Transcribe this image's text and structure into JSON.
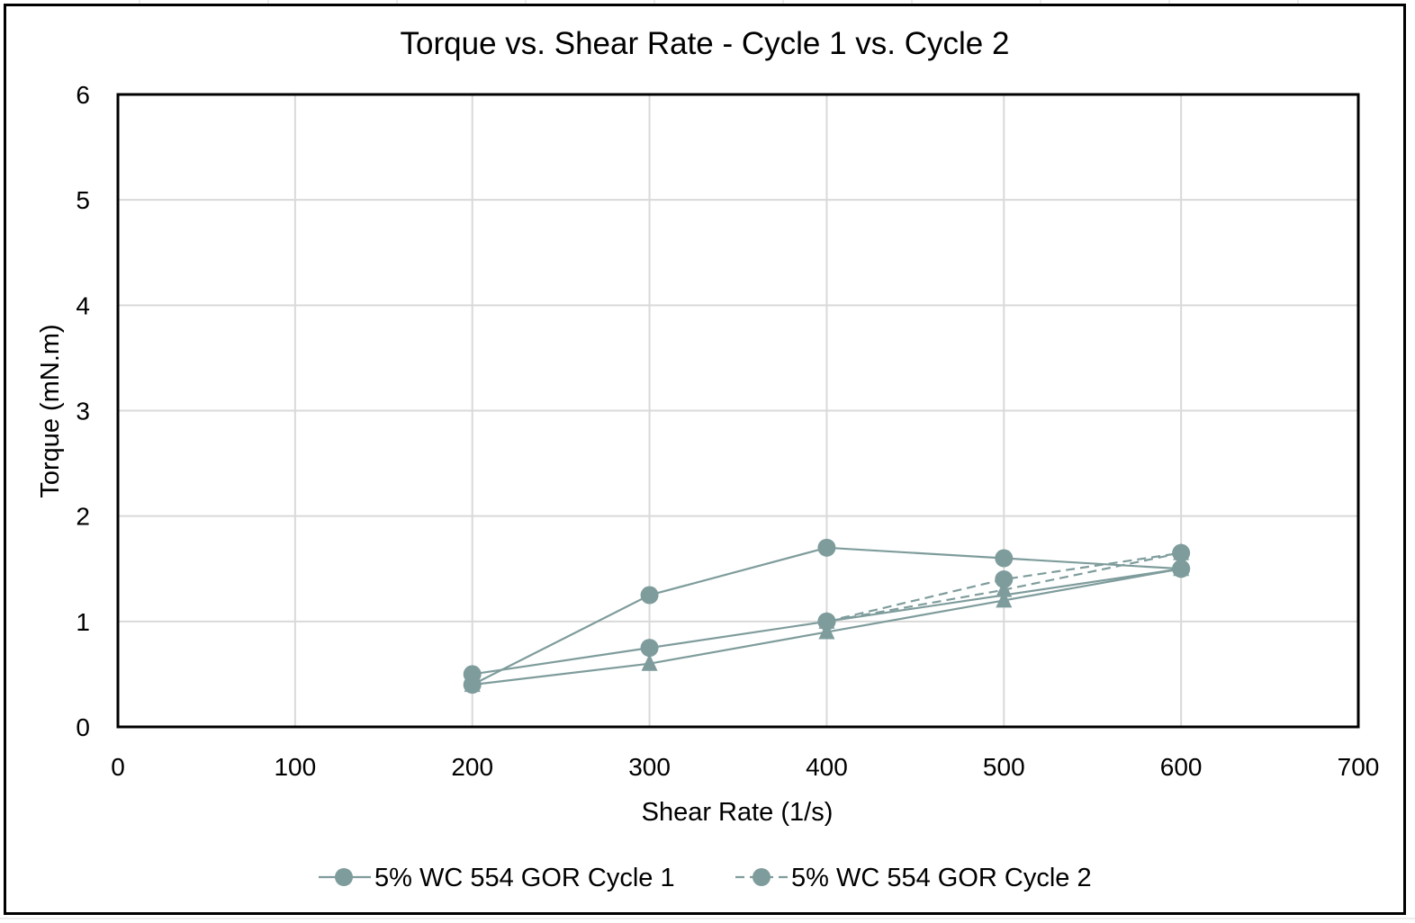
{
  "chart_data": {
    "type": "line",
    "title": "Torque vs. Shear Rate - Cycle 1 vs. Cycle 2",
    "xlabel": "Shear Rate (1/s)",
    "ylabel": "Torque (mN.m)",
    "xlim": [
      0,
      700
    ],
    "ylim": [
      0,
      6
    ],
    "x_ticks": [
      "0",
      "100",
      "200",
      "300",
      "400",
      "500",
      "600",
      "700"
    ],
    "y_ticks": [
      "0",
      "1",
      "2",
      "3",
      "4",
      "5",
      "6"
    ],
    "grid": true,
    "legend_position": "bottom",
    "series_color": "#7f9c9c",
    "series": [
      {
        "name": "5% WC 554 GOR Cycle 1",
        "line_style": "solid",
        "segments": [
          {
            "marker": "circle",
            "points": [
              [
                200,
                0.4
              ],
              [
                300,
                1.25
              ],
              [
                400,
                1.7
              ],
              [
                500,
                1.6
              ],
              [
                600,
                1.5
              ]
            ]
          },
          {
            "marker": "circle",
            "points": [
              [
                600,
                1.5
              ],
              [
                400,
                1.0
              ],
              [
                300,
                0.75
              ],
              [
                200,
                0.5
              ]
            ]
          }
        ]
      },
      {
        "name": "5% WC 554 GOR Cycle 2",
        "line_style": "dashed",
        "segments": [
          {
            "marker": "circle",
            "points": [
              [
                400,
                1.0
              ],
              [
                500,
                1.4
              ],
              [
                600,
                1.65
              ]
            ]
          },
          {
            "marker": "triangle",
            "points": [
              [
                600,
                1.65
              ],
              [
                500,
                1.3
              ],
              [
                400,
                1.0
              ]
            ]
          }
        ]
      },
      {
        "name": "",
        "line_style": "solid",
        "segments": [
          {
            "marker": "triangle",
            "points": [
              [
                200,
                0.4
              ],
              [
                300,
                0.6
              ],
              [
                400,
                0.9
              ],
              [
                500,
                1.2
              ],
              [
                600,
                1.5
              ]
            ]
          }
        ]
      }
    ]
  }
}
